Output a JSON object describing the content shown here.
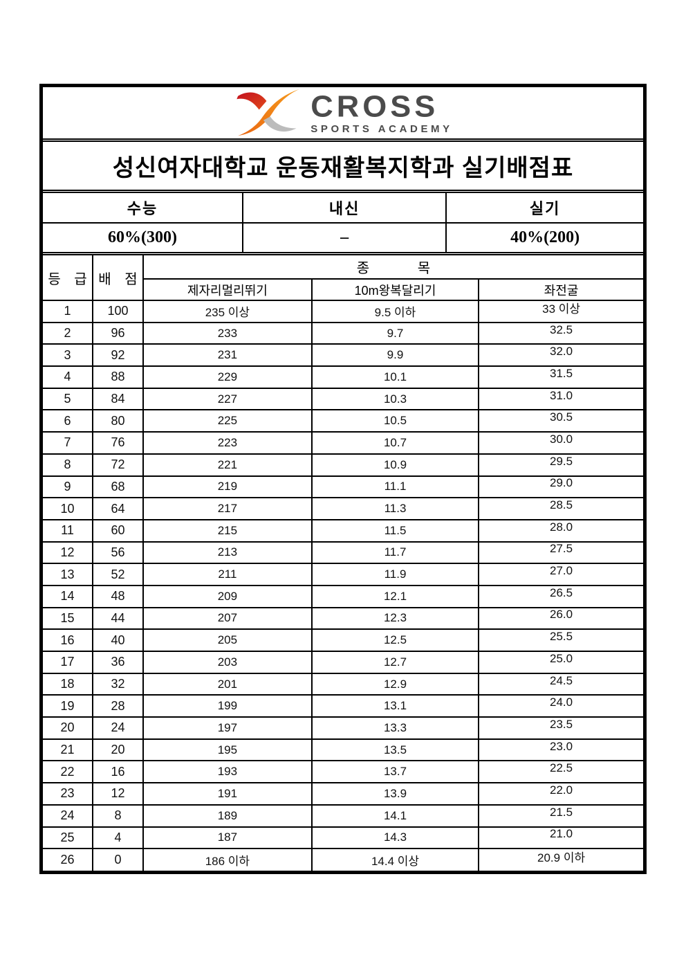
{
  "logo": {
    "brand": "CROSS",
    "subtitle": "SPORTS ACADEMY",
    "colors": {
      "red": "#c3111f",
      "orange": "#f08218",
      "gray": "#bcbcbc",
      "text": "#4b4b4b"
    }
  },
  "title": "성신여자대학교 운동재활복지학과 실기배점표",
  "summary": {
    "headers": [
      "수능",
      "내신",
      "실기"
    ],
    "values": [
      "60%(300)",
      "–",
      "40%(200)"
    ]
  },
  "table": {
    "grade_header": "등 급",
    "points_header": "배 점",
    "events_header": "종 목",
    "event_columns": [
      "제자리멀리뛰기",
      "10m왕복달리기",
      "좌전굴"
    ],
    "rows": [
      [
        "1",
        "100",
        "235 이상",
        "9.5 이하",
        "33 이상"
      ],
      [
        "2",
        "96",
        "233",
        "9.7",
        "32.5"
      ],
      [
        "3",
        "92",
        "231",
        "9.9",
        "32.0"
      ],
      [
        "4",
        "88",
        "229",
        "10.1",
        "31.5"
      ],
      [
        "5",
        "84",
        "227",
        "10.3",
        "31.0"
      ],
      [
        "6",
        "80",
        "225",
        "10.5",
        "30.5"
      ],
      [
        "7",
        "76",
        "223",
        "10.7",
        "30.0"
      ],
      [
        "8",
        "72",
        "221",
        "10.9",
        "29.5"
      ],
      [
        "9",
        "68",
        "219",
        "11.1",
        "29.0"
      ],
      [
        "10",
        "64",
        "217",
        "11.3",
        "28.5"
      ],
      [
        "11",
        "60",
        "215",
        "11.5",
        "28.0"
      ],
      [
        "12",
        "56",
        "213",
        "11.7",
        "27.5"
      ],
      [
        "13",
        "52",
        "211",
        "11.9",
        "27.0"
      ],
      [
        "14",
        "48",
        "209",
        "12.1",
        "26.5"
      ],
      [
        "15",
        "44",
        "207",
        "12.3",
        "26.0"
      ],
      [
        "16",
        "40",
        "205",
        "12.5",
        "25.5"
      ],
      [
        "17",
        "36",
        "203",
        "12.7",
        "25.0"
      ],
      [
        "18",
        "32",
        "201",
        "12.9",
        "24.5"
      ],
      [
        "19",
        "28",
        "199",
        "13.1",
        "24.0"
      ],
      [
        "20",
        "24",
        "197",
        "13.3",
        "23.5"
      ],
      [
        "21",
        "20",
        "195",
        "13.5",
        "23.0"
      ],
      [
        "22",
        "16",
        "193",
        "13.7",
        "22.5"
      ],
      [
        "23",
        "12",
        "191",
        "13.9",
        "22.0"
      ],
      [
        "24",
        "8",
        "189",
        "14.1",
        "21.5"
      ],
      [
        "25",
        "4",
        "187",
        "14.3",
        "21.0"
      ],
      [
        "26",
        "0",
        "186 이하",
        "14.4 이상",
        "20.9 이하"
      ]
    ]
  }
}
